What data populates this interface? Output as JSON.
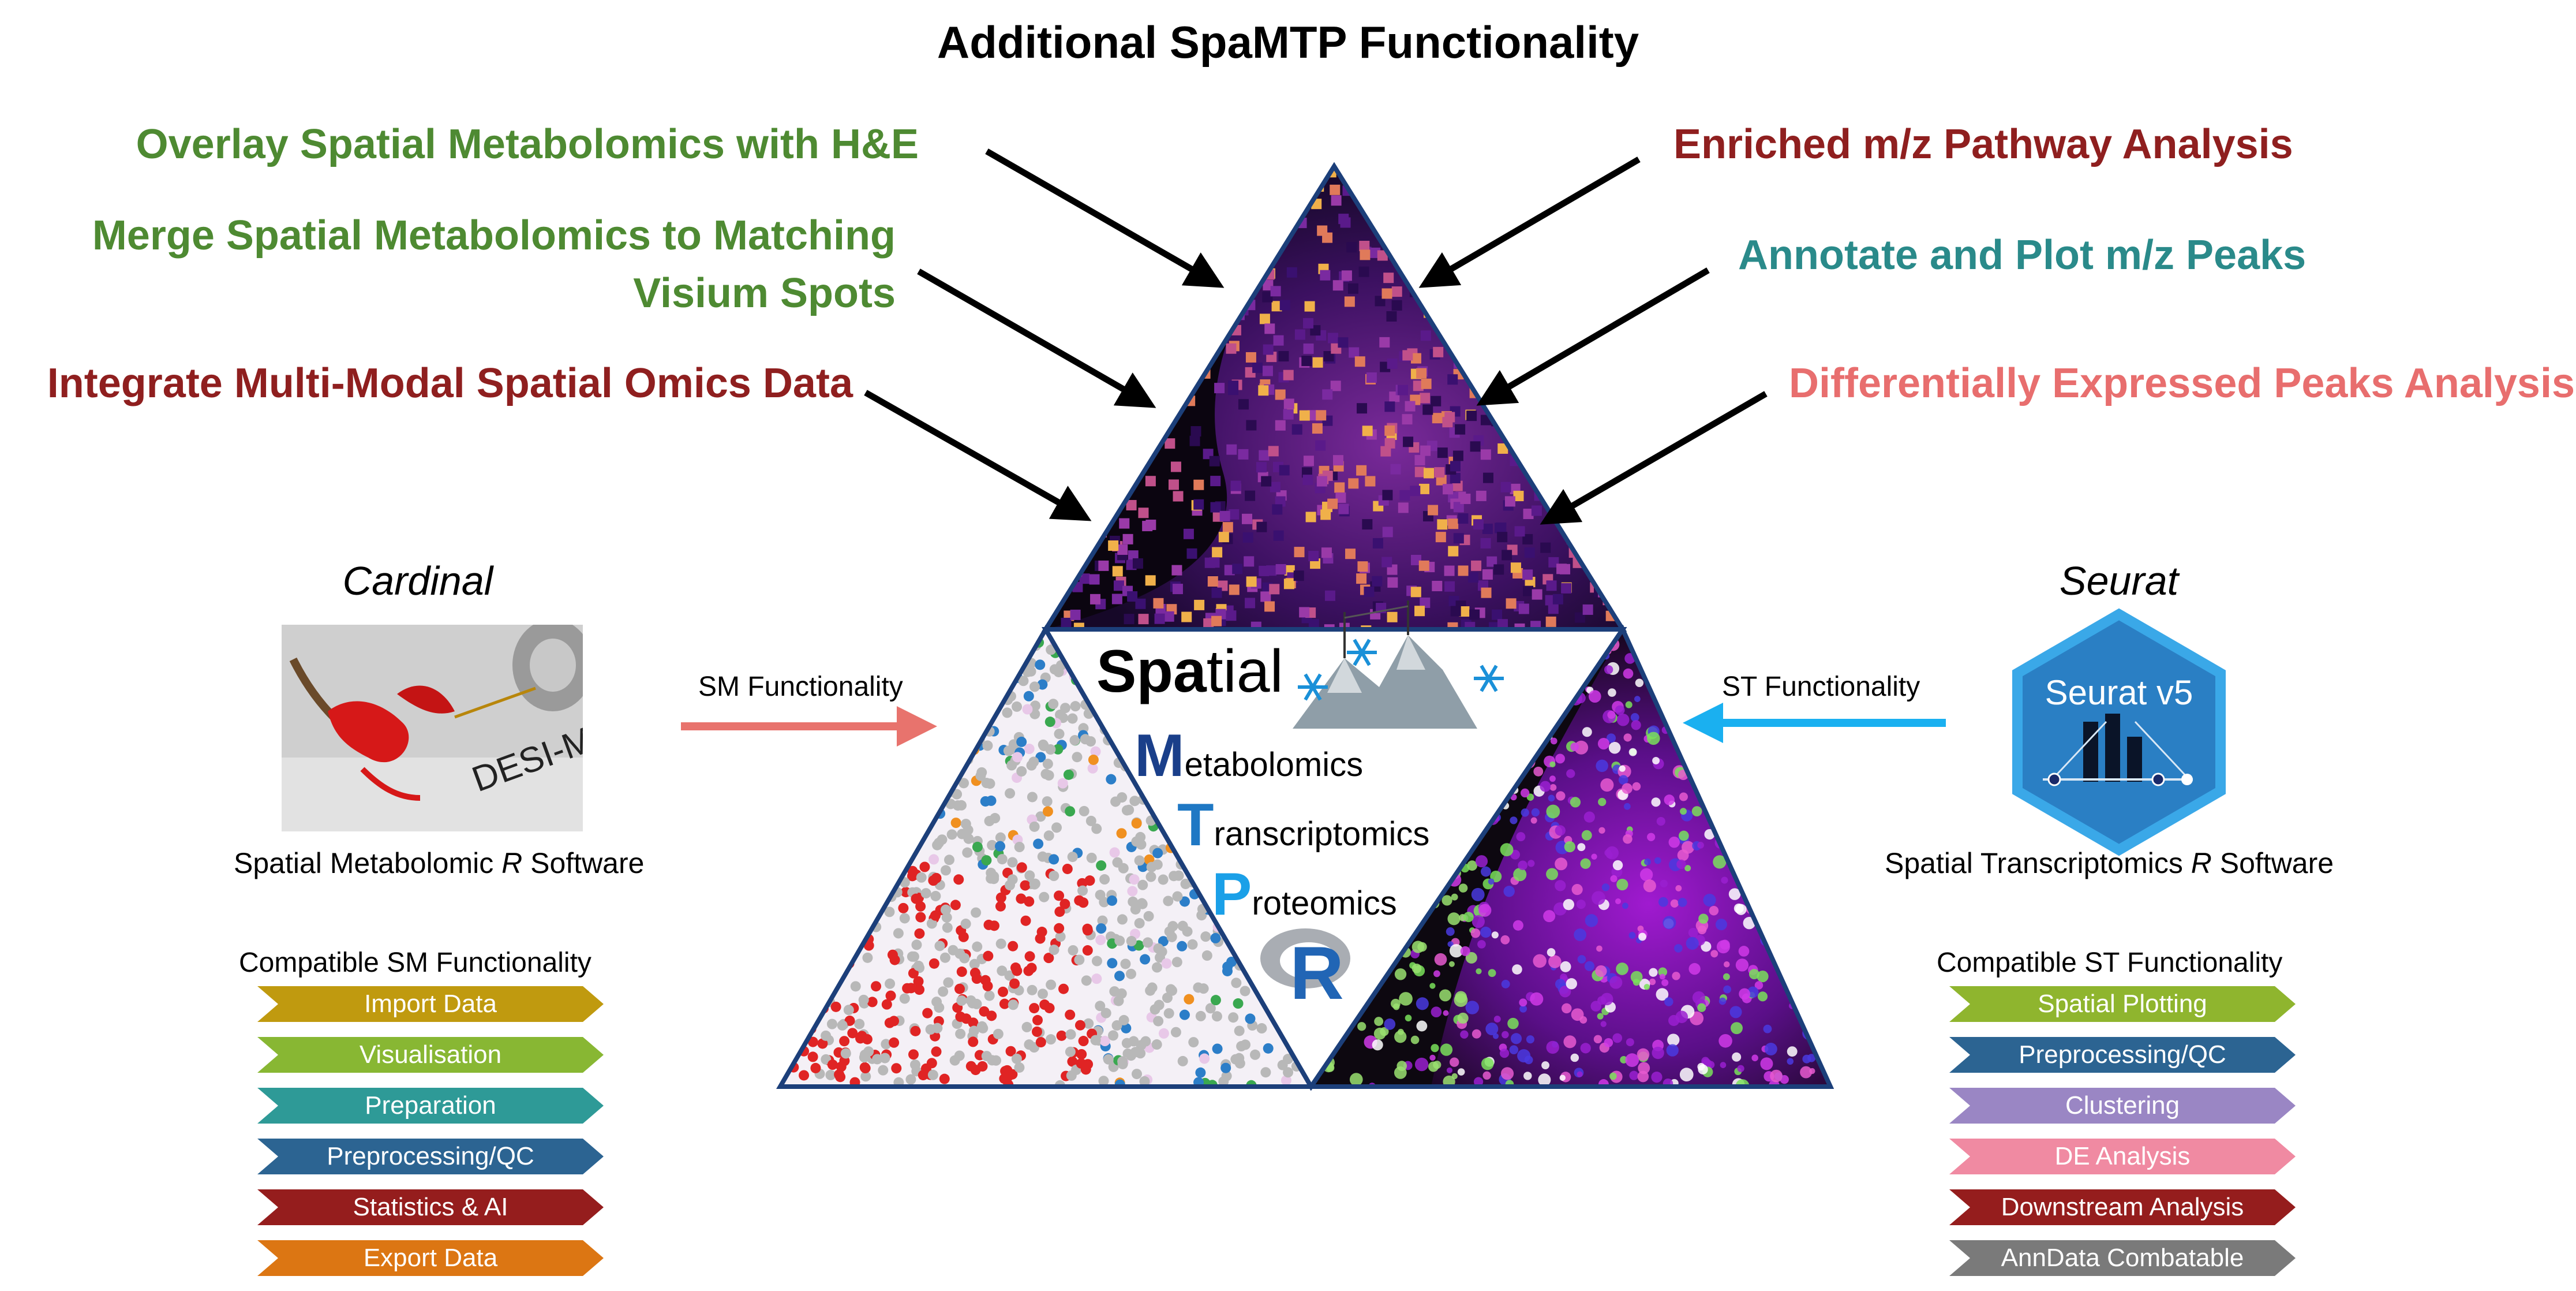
{
  "title": "Additional SpaMTP Functionality",
  "features_left": [
    {
      "text": "Overlay Spatial Metabolomics with H&E",
      "color": "#4e8a32"
    },
    {
      "text": "Merge Spatial Metabolomics to Matching Visium Spots",
      "color": "#4e8a32"
    },
    {
      "text": "Integrate Multi-Modal Spatial Omics Data",
      "color": "#8f1f1f"
    }
  ],
  "features_right": [
    {
      "text": "Enriched m/z Pathway Analysis",
      "color": "#8f1f1f"
    },
    {
      "text": "Annotate and Plot m/z Peaks",
      "color": "#2a8a8a"
    },
    {
      "text": "Differentially Expressed Peaks Analysis",
      "color": "#e86e6e"
    }
  ],
  "left_software": {
    "name": "Cardinal",
    "photo_label": "DESI-MS",
    "subtitle_pre": "Spatial Metabolomic ",
    "subtitle_italic": "R",
    "subtitle_post": " Software",
    "arrow_label": "SM Functionality",
    "arrow_color": "#e8736d",
    "list_title": "Compatible SM Functionality",
    "items": [
      {
        "label": "Import Data",
        "color": "#c09a0f"
      },
      {
        "label": "Visualisation",
        "color": "#88b733"
      },
      {
        "label": "Preparation",
        "color": "#2e9a97"
      },
      {
        "label": "Preprocessing/QC",
        "color": "#2c6492"
      },
      {
        "label": "Statistics & AI",
        "color": "#951d1d"
      },
      {
        "label": "Export Data",
        "color": "#dc7613"
      }
    ]
  },
  "right_software": {
    "name": "Seurat",
    "logo_text": "Seurat v5",
    "subtitle_pre": "Spatial Transcriptomics ",
    "subtitle_italic": "R",
    "subtitle_post": " Software",
    "arrow_label": "ST Functionality",
    "arrow_color": "#1ab0f0",
    "list_title": "Compatible ST Functionality",
    "items": [
      {
        "label": "Spatial Plotting",
        "color": "#8fb52e"
      },
      {
        "label": "Preprocessing/QC",
        "color": "#2c6492"
      },
      {
        "label": "Clustering",
        "color": "#9a86c4"
      },
      {
        "label": "DE Analysis",
        "color": "#f08aa2"
      },
      {
        "label": "Downstream Analysis",
        "color": "#951d1d"
      },
      {
        "label": "AnnData Combatable",
        "color": "#7a7a7a"
      }
    ]
  },
  "spamtp": {
    "spatial_bold": "Spa",
    "spatial_rest": "tial",
    "lines": [
      {
        "initial": "M",
        "rest": "etabolomics",
        "color": "#1a3f8a"
      },
      {
        "initial": "T",
        "rest": "ranscriptomics",
        "color": "#1f78c4"
      },
      {
        "initial": "P",
        "rest": "roteomics",
        "color": "#1aa0e8"
      }
    ],
    "r_logo": "R"
  }
}
